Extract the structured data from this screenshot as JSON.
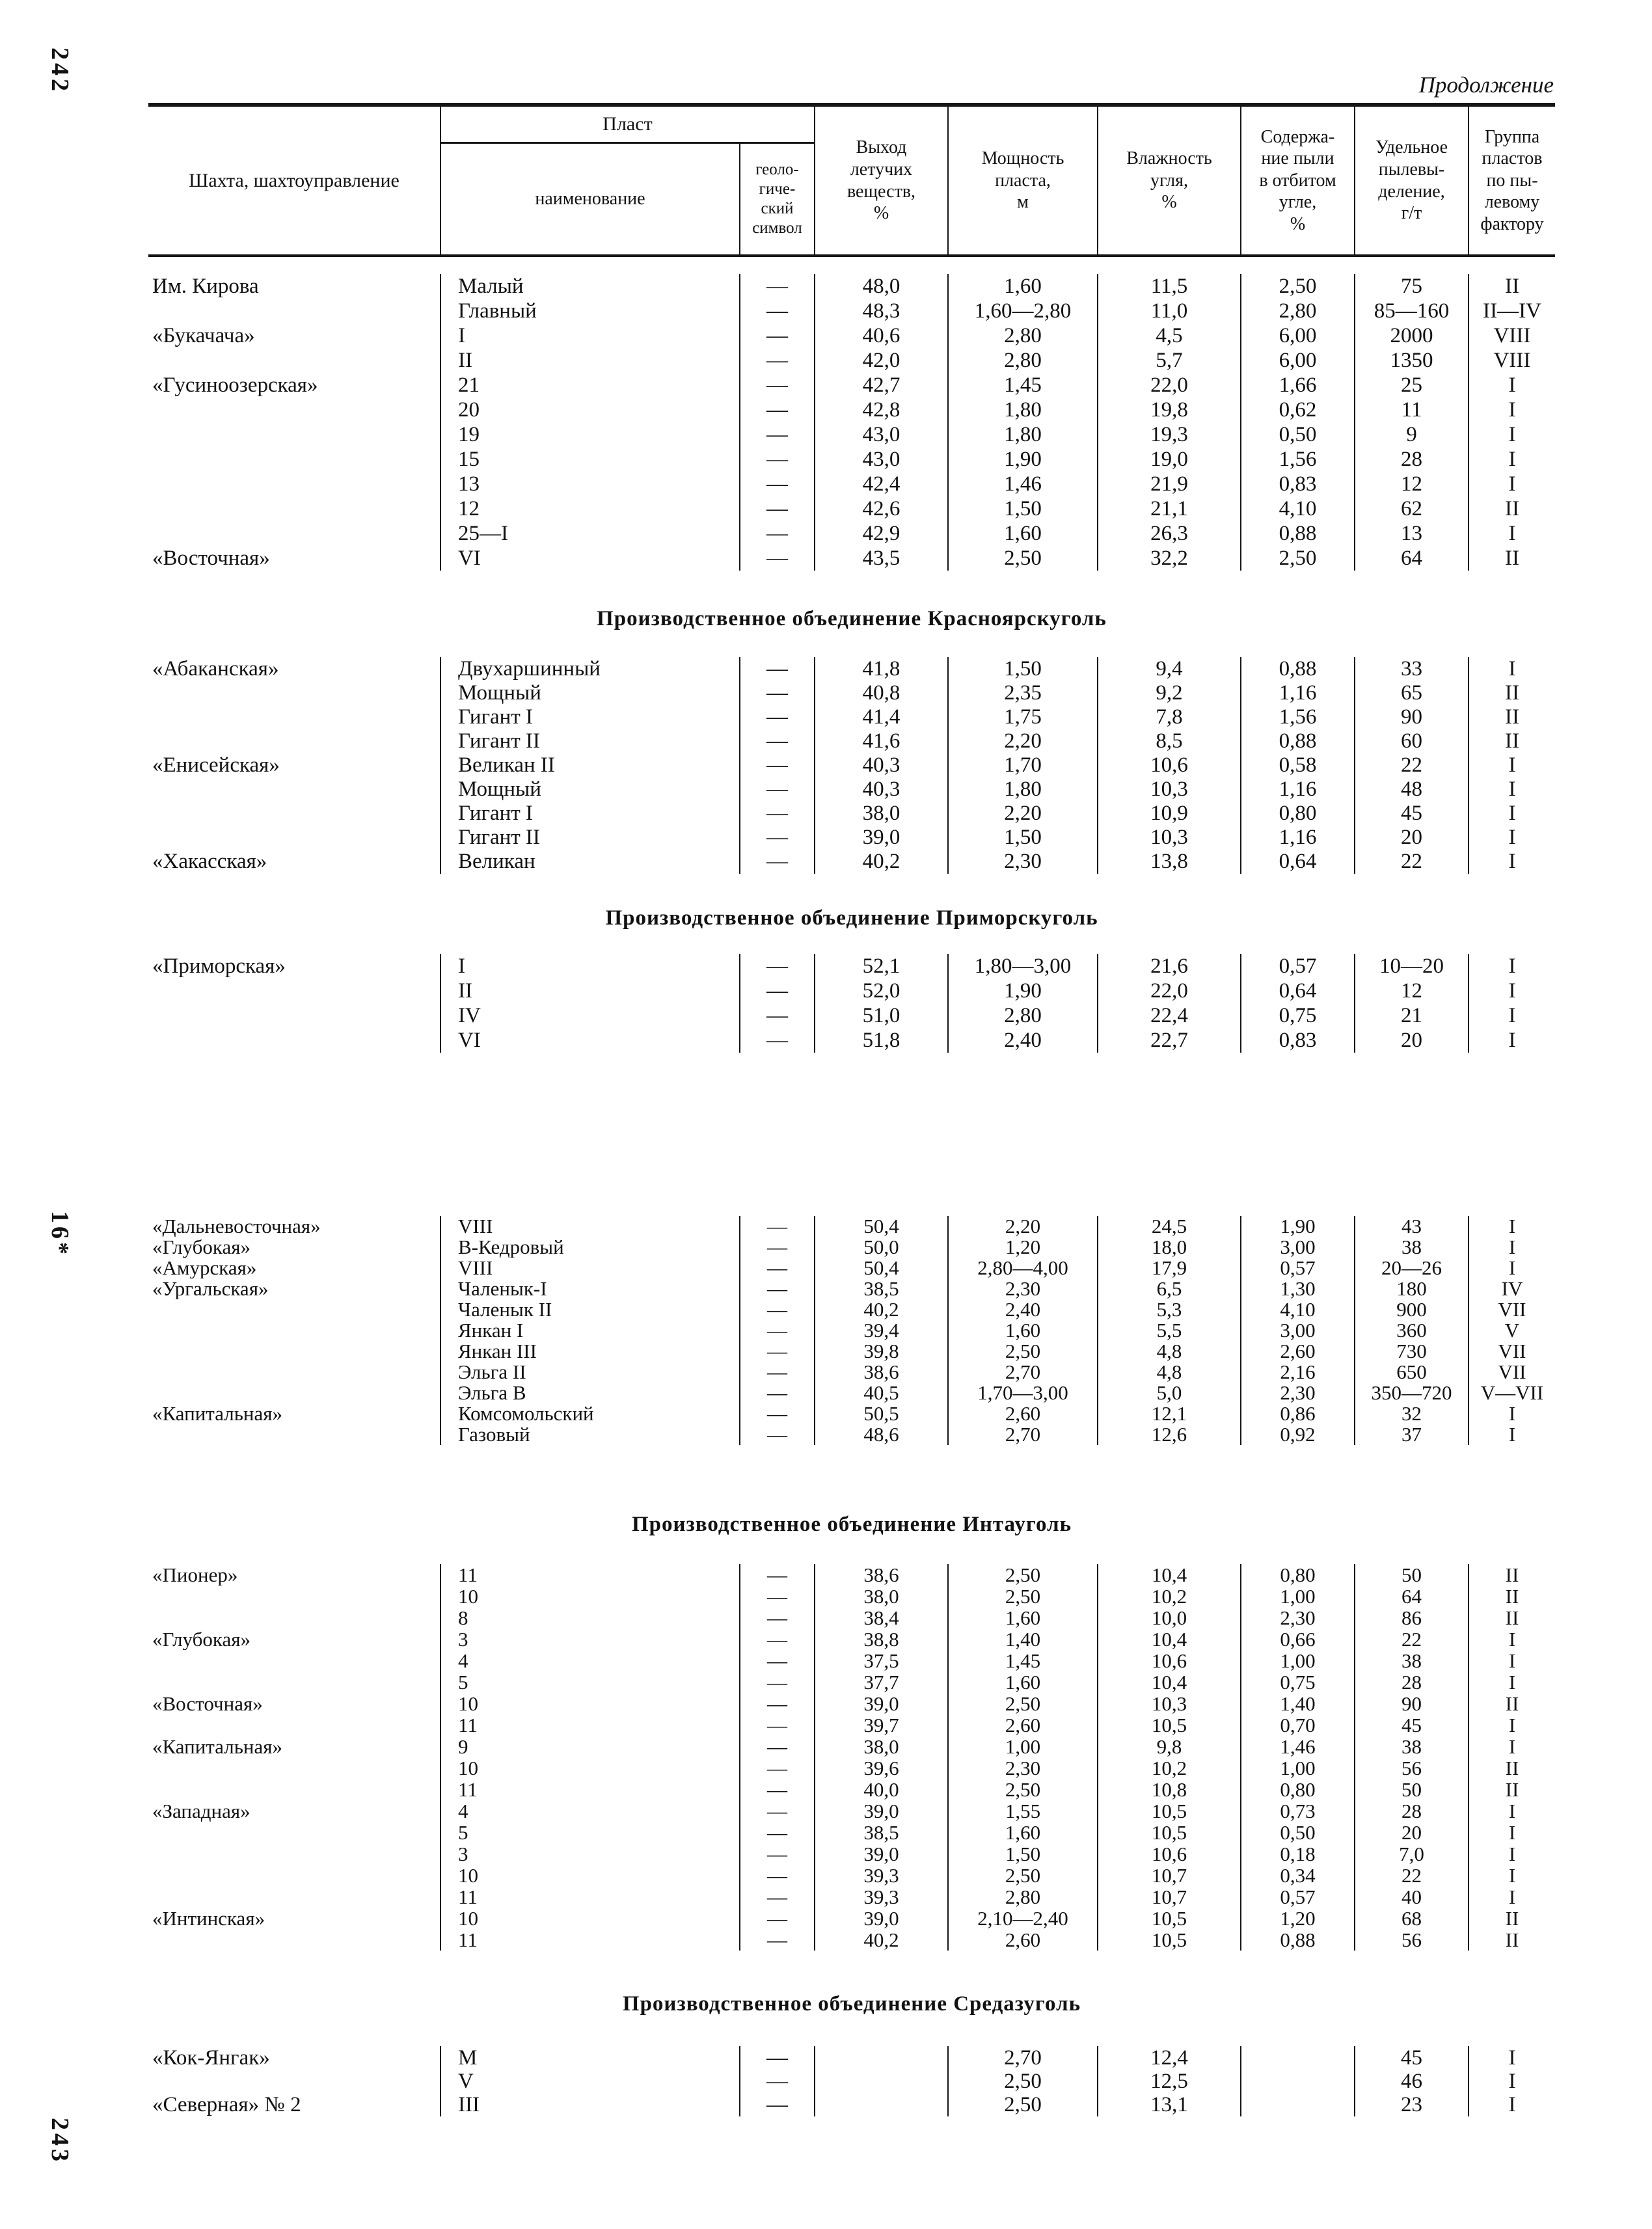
{
  "page": {
    "margin_top_label": "242",
    "margin_middle_label": "16*",
    "margin_bottom_label": "243",
    "continuation_label": "Продолжение"
  },
  "table": {
    "header": {
      "mine": "Шахта, шахтоуправление",
      "seam_group": "Пласт",
      "seam_name": "наименование",
      "geol_symbol": "геоло-\nгиче-\nский\nсимвол",
      "volatile": "Выход\nлетучих\nвеществ,\n%",
      "thickness": "Мощность\nпласта,\nм",
      "moisture": "Влажность\nугля,\n%",
      "dust": "Содержа-\nние пыли\nв отбитом\nугле,\n%",
      "emission": "Удельное\nпылевы-\nделение,\nг/т",
      "group": "Группа\nпластов\nпо пы-\nлевому\nфактору"
    },
    "columns_order": [
      "mine",
      "seam",
      "geol",
      "volatile",
      "thickness",
      "moisture",
      "dust",
      "emission",
      "group"
    ],
    "sections": [
      {
        "title": null,
        "rows": [
          {
            "mine": "Им. Кирова",
            "seam": "Малый",
            "geol": "—",
            "volatile": "48,0",
            "thickness": "1,60",
            "moisture": "11,5",
            "dust": "2,50",
            "emission": "75",
            "group": "II"
          },
          {
            "mine": "",
            "seam": "Главный",
            "geol": "—",
            "volatile": "48,3",
            "thickness": "1,60—2,80",
            "moisture": "11,0",
            "dust": "2,80",
            "emission": "85—160",
            "group": "II—IV"
          },
          {
            "mine": "«Букачача»",
            "seam": "I",
            "geol": "—",
            "volatile": "40,6",
            "thickness": "2,80",
            "moisture": "4,5",
            "dust": "6,00",
            "emission": "2000",
            "group": "VIII"
          },
          {
            "mine": "",
            "seam": "II",
            "geol": "—",
            "volatile": "42,0",
            "thickness": "2,80",
            "moisture": "5,7",
            "dust": "6,00",
            "emission": "1350",
            "group": "VIII"
          },
          {
            "mine": "«Гусиноозерская»",
            "seam": "21",
            "geol": "—",
            "volatile": "42,7",
            "thickness": "1,45",
            "moisture": "22,0",
            "dust": "1,66",
            "emission": "25",
            "group": "I"
          },
          {
            "mine": "",
            "seam": "20",
            "geol": "—",
            "volatile": "42,8",
            "thickness": "1,80",
            "moisture": "19,8",
            "dust": "0,62",
            "emission": "11",
            "group": "I"
          },
          {
            "mine": "",
            "seam": "19",
            "geol": "—",
            "volatile": "43,0",
            "thickness": "1,80",
            "moisture": "19,3",
            "dust": "0,50",
            "emission": "9",
            "group": "I"
          },
          {
            "mine": "",
            "seam": "15",
            "geol": "—",
            "volatile": "43,0",
            "thickness": "1,90",
            "moisture": "19,0",
            "dust": "1,56",
            "emission": "28",
            "group": "I"
          },
          {
            "mine": "",
            "seam": "13",
            "geol": "—",
            "volatile": "42,4",
            "thickness": "1,46",
            "moisture": "21,9",
            "dust": "0,83",
            "emission": "12",
            "group": "I"
          },
          {
            "mine": "",
            "seam": "12",
            "geol": "—",
            "volatile": "42,6",
            "thickness": "1,50",
            "moisture": "21,1",
            "dust": "4,10",
            "emission": "62",
            "group": "II"
          },
          {
            "mine": "",
            "seam": "25—I",
            "geol": "—",
            "volatile": "42,9",
            "thickness": "1,60",
            "moisture": "26,3",
            "dust": "0,88",
            "emission": "13",
            "group": "I"
          },
          {
            "mine": "«Восточная»",
            "seam": "VI",
            "geol": "—",
            "volatile": "43,5",
            "thickness": "2,50",
            "moisture": "32,2",
            "dust": "2,50",
            "emission": "64",
            "group": "II"
          }
        ]
      },
      {
        "title": "Производственное объединение Красноярскуголь",
        "rows": [
          {
            "mine": "«Абаканская»",
            "seam": "Двухаршинный",
            "geol": "—",
            "volatile": "41,8",
            "thickness": "1,50",
            "moisture": "9,4",
            "dust": "0,88",
            "emission": "33",
            "group": "I"
          },
          {
            "mine": "",
            "seam": "Мощный",
            "geol": "—",
            "volatile": "40,8",
            "thickness": "2,35",
            "moisture": "9,2",
            "dust": "1,16",
            "emission": "65",
            "group": "II"
          },
          {
            "mine": "",
            "seam": "Гигант I",
            "geol": "—",
            "volatile": "41,4",
            "thickness": "1,75",
            "moisture": "7,8",
            "dust": "1,56",
            "emission": "90",
            "group": "II"
          },
          {
            "mine": "",
            "seam": "Гигант II",
            "geol": "—",
            "volatile": "41,6",
            "thickness": "2,20",
            "moisture": "8,5",
            "dust": "0,88",
            "emission": "60",
            "group": "II"
          },
          {
            "mine": "«Енисейская»",
            "seam": "Великан II",
            "geol": "—",
            "volatile": "40,3",
            "thickness": "1,70",
            "moisture": "10,6",
            "dust": "0,58",
            "emission": "22",
            "group": "I"
          },
          {
            "mine": "",
            "seam": "Мощный",
            "geol": "—",
            "volatile": "40,3",
            "thickness": "1,80",
            "moisture": "10,3",
            "dust": "1,16",
            "emission": "48",
            "group": "I"
          },
          {
            "mine": "",
            "seam": "Гигант I",
            "geol": "—",
            "volatile": "38,0",
            "thickness": "2,20",
            "moisture": "10,9",
            "dust": "0,80",
            "emission": "45",
            "group": "I"
          },
          {
            "mine": "",
            "seam": "Гигант II",
            "geol": "—",
            "volatile": "39,0",
            "thickness": "1,50",
            "moisture": "10,3",
            "dust": "1,16",
            "emission": "20",
            "group": "I"
          },
          {
            "mine": "«Хакасская»",
            "seam": "Великан",
            "geol": "—",
            "volatile": "40,2",
            "thickness": "2,30",
            "moisture": "13,8",
            "dust": "0,64",
            "emission": "22",
            "group": "I"
          }
        ]
      },
      {
        "title": "Производственное объединение Приморскуголь",
        "rows": [
          {
            "mine": "«Приморская»",
            "seam": "I",
            "geol": "—",
            "volatile": "52,1",
            "thickness": "1,80—3,00",
            "moisture": "21,6",
            "dust": "0,57",
            "emission": "10—20",
            "group": "I"
          },
          {
            "mine": "",
            "seam": "II",
            "geol": "—",
            "volatile": "52,0",
            "thickness": "1,90",
            "moisture": "22,0",
            "dust": "0,64",
            "emission": "12",
            "group": "I"
          },
          {
            "mine": "",
            "seam": "IV",
            "geol": "—",
            "volatile": "51,0",
            "thickness": "2,80",
            "moisture": "22,4",
            "dust": "0,75",
            "emission": "21",
            "group": "I"
          },
          {
            "mine": "",
            "seam": "VI",
            "geol": "—",
            "volatile": "51,8",
            "thickness": "2,40",
            "moisture": "22,7",
            "dust": "0,83",
            "emission": "20",
            "group": "I"
          }
        ]
      },
      {
        "title": null,
        "rows": [
          {
            "mine": "«Дальневосточная»",
            "seam": "VIII",
            "geol": "—",
            "volatile": "50,4",
            "thickness": "2,20",
            "moisture": "24,5",
            "dust": "1,90",
            "emission": "43",
            "group": "I"
          },
          {
            "mine": "«Глубокая»",
            "seam": "В-Кедровый",
            "geol": "—",
            "volatile": "50,0",
            "thickness": "1,20",
            "moisture": "18,0",
            "dust": "3,00",
            "emission": "38",
            "group": "I"
          },
          {
            "mine": "«Амурская»",
            "seam": "VIII",
            "geol": "—",
            "volatile": "50,4",
            "thickness": "2,80—4,00",
            "moisture": "17,9",
            "dust": "0,57",
            "emission": "20—26",
            "group": "I"
          },
          {
            "mine": "«Ургальская»",
            "seam": "Чаленык-I",
            "geol": "—",
            "volatile": "38,5",
            "thickness": "2,30",
            "moisture": "6,5",
            "dust": "1,30",
            "emission": "180",
            "group": "IV"
          },
          {
            "mine": "",
            "seam": "Чаленык II",
            "geol": "—",
            "volatile": "40,2",
            "thickness": "2,40",
            "moisture": "5,3",
            "dust": "4,10",
            "emission": "900",
            "group": "VII"
          },
          {
            "mine": "",
            "seam": "Янкан I",
            "geol": "—",
            "volatile": "39,4",
            "thickness": "1,60",
            "moisture": "5,5",
            "dust": "3,00",
            "emission": "360",
            "group": "V"
          },
          {
            "mine": "",
            "seam": "Янкан III",
            "geol": "—",
            "volatile": "39,8",
            "thickness": "2,50",
            "moisture": "4,8",
            "dust": "2,60",
            "emission": "730",
            "group": "VII"
          },
          {
            "mine": "",
            "seam": "Эльга II",
            "geol": "—",
            "volatile": "38,6",
            "thickness": "2,70",
            "moisture": "4,8",
            "dust": "2,16",
            "emission": "650",
            "group": "VII"
          },
          {
            "mine": "",
            "seam": "Эльга В",
            "geol": "—",
            "volatile": "40,5",
            "thickness": "1,70—3,00",
            "moisture": "5,0",
            "dust": "2,30",
            "emission": "350—720",
            "group": "V—VII"
          },
          {
            "mine": "«Капитальная»",
            "seam": "Комсомольский",
            "geol": "—",
            "volatile": "50,5",
            "thickness": "2,60",
            "moisture": "12,1",
            "dust": "0,86",
            "emission": "32",
            "group": "I"
          },
          {
            "mine": "",
            "seam": "Газовый",
            "geol": "—",
            "volatile": "48,6",
            "thickness": "2,70",
            "moisture": "12,6",
            "dust": "0,92",
            "emission": "37",
            "group": "I"
          }
        ]
      },
      {
        "title": "Производственное объединение Интауголь",
        "rows": [
          {
            "mine": "«Пионер»",
            "seam": "11",
            "geol": "—",
            "volatile": "38,6",
            "thickness": "2,50",
            "moisture": "10,4",
            "dust": "0,80",
            "emission": "50",
            "group": "II"
          },
          {
            "mine": "",
            "seam": "10",
            "geol": "—",
            "volatile": "38,0",
            "thickness": "2,50",
            "moisture": "10,2",
            "dust": "1,00",
            "emission": "64",
            "group": "II"
          },
          {
            "mine": "",
            "seam": "8",
            "geol": "—",
            "volatile": "38,4",
            "thickness": "1,60",
            "moisture": "10,0",
            "dust": "2,30",
            "emission": "86",
            "group": "II"
          },
          {
            "mine": "«Глубокая»",
            "seam": "3",
            "geol": "—",
            "volatile": "38,8",
            "thickness": "1,40",
            "moisture": "10,4",
            "dust": "0,66",
            "emission": "22",
            "group": "I"
          },
          {
            "mine": "",
            "seam": "4",
            "geol": "—",
            "volatile": "37,5",
            "thickness": "1,45",
            "moisture": "10,6",
            "dust": "1,00",
            "emission": "38",
            "group": "I"
          },
          {
            "mine": "",
            "seam": "5",
            "geol": "—",
            "volatile": "37,7",
            "thickness": "1,60",
            "moisture": "10,4",
            "dust": "0,75",
            "emission": "28",
            "group": "I"
          },
          {
            "mine": "«Восточная»",
            "seam": "10",
            "geol": "—",
            "volatile": "39,0",
            "thickness": "2,50",
            "moisture": "10,3",
            "dust": "1,40",
            "emission": "90",
            "group": "II"
          },
          {
            "mine": "",
            "seam": "11",
            "geol": "—",
            "volatile": "39,7",
            "thickness": "2,60",
            "moisture": "10,5",
            "dust": "0,70",
            "emission": "45",
            "group": "I"
          },
          {
            "mine": "«Капитальная»",
            "seam": "9",
            "geol": "—",
            "volatile": "38,0",
            "thickness": "1,00",
            "moisture": "9,8",
            "dust": "1,46",
            "emission": "38",
            "group": "I"
          },
          {
            "mine": "",
            "seam": "10",
            "geol": "—",
            "volatile": "39,6",
            "thickness": "2,30",
            "moisture": "10,2",
            "dust": "1,00",
            "emission": "56",
            "group": "II"
          },
          {
            "mine": "",
            "seam": "11",
            "geol": "—",
            "volatile": "40,0",
            "thickness": "2,50",
            "moisture": "10,8",
            "dust": "0,80",
            "emission": "50",
            "group": "II"
          },
          {
            "mine": "«Западная»",
            "seam": "4",
            "geol": "—",
            "volatile": "39,0",
            "thickness": "1,55",
            "moisture": "10,5",
            "dust": "0,73",
            "emission": "28",
            "group": "I"
          },
          {
            "mine": "",
            "seam": "5",
            "geol": "—",
            "volatile": "38,5",
            "thickness": "1,60",
            "moisture": "10,5",
            "dust": "0,50",
            "emission": "20",
            "group": "I"
          },
          {
            "mine": "",
            "seam": "3",
            "geol": "—",
            "volatile": "39,0",
            "thickness": "1,50",
            "moisture": "10,6",
            "dust": "0,18",
            "emission": "7,0",
            "group": "I"
          },
          {
            "mine": "",
            "seam": "10",
            "geol": "—",
            "volatile": "39,3",
            "thickness": "2,50",
            "moisture": "10,7",
            "dust": "0,34",
            "emission": "22",
            "group": "I"
          },
          {
            "mine": "",
            "seam": "11",
            "geol": "—",
            "volatile": "39,3",
            "thickness": "2,80",
            "moisture": "10,7",
            "dust": "0,57",
            "emission": "40",
            "group": "I"
          },
          {
            "mine": "«Интинская»",
            "seam": "10",
            "geol": "—",
            "volatile": "39,0",
            "thickness": "2,10—2,40",
            "moisture": "10,5",
            "dust": "1,20",
            "emission": "68",
            "group": "II"
          },
          {
            "mine": "",
            "seam": "11",
            "geol": "—",
            "volatile": "40,2",
            "thickness": "2,60",
            "moisture": "10,5",
            "dust": "0,88",
            "emission": "56",
            "group": "II"
          }
        ]
      },
      {
        "title": "Производственное объединение Средазуголь",
        "rows": [
          {
            "mine": "«Кок-Янгак»",
            "seam": "М",
            "geol": "—",
            "volatile": "",
            "thickness": "2,70",
            "moisture": "12,4",
            "dust": "",
            "emission": "45",
            "group": "I"
          },
          {
            "mine": "",
            "seam": "V",
            "geol": "—",
            "volatile": "",
            "thickness": "2,50",
            "moisture": "12,5",
            "dust": "",
            "emission": "46",
            "group": "I"
          },
          {
            "mine": "«Северная» № 2",
            "seam": "III",
            "geol": "—",
            "volatile": "",
            "thickness": "2,50",
            "moisture": "13,1",
            "dust": "",
            "emission": "23",
            "group": "I"
          }
        ]
      }
    ]
  }
}
